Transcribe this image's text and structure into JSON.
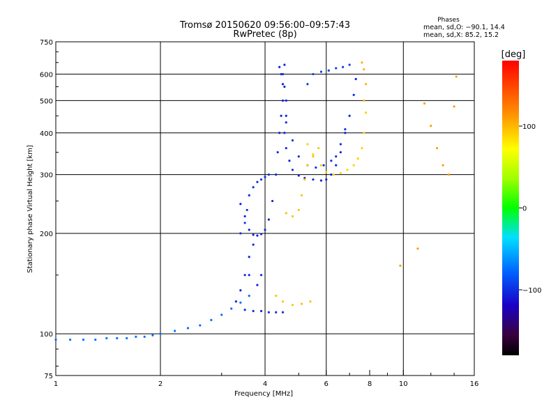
{
  "chart_data": {
    "type": "scatter",
    "title": "Tromsø 20150620 09:56:00–09:57:43",
    "subtitle": "RwPretec (8p)",
    "xlabel": "Frequency [MHz]",
    "ylabel": "Stationary phase Virtual Height [km]",
    "x_scale": "log",
    "y_scale": "log",
    "xlim": [
      1,
      16
    ],
    "ylim": [
      75,
      750
    ],
    "x_ticks": [
      1,
      2,
      4,
      6,
      8,
      10,
      16
    ],
    "x_tick_labels": [
      "1",
      "2",
      "4",
      "6",
      "8",
      "10",
      "16"
    ],
    "y_ticks": [
      75,
      100,
      200,
      300,
      400,
      500,
      600,
      750
    ],
    "y_tick_labels": [
      "75",
      "100",
      "200",
      "300",
      "400",
      "500",
      "600",
      "750"
    ],
    "grid": true,
    "phases_header": "Phases",
    "phases_o": "mean, sd,O: −90.1, 14.4",
    "phases_x": "mean, sd,X:  85.2, 15.2",
    "colorbar": {
      "label": "[deg]",
      "ticks": [
        100,
        0,
        -100
      ],
      "tick_labels": [
        "100",
        "0",
        "−100"
      ],
      "range": [
        -180,
        180
      ]
    },
    "series": [
      {
        "color_deg": -75,
        "points": [
          [
            1.0,
            96
          ],
          [
            1.1,
            96
          ],
          [
            1.2,
            96
          ],
          [
            1.3,
            96
          ],
          [
            1.4,
            97
          ],
          [
            1.5,
            97
          ],
          [
            1.6,
            97
          ],
          [
            1.7,
            98
          ],
          [
            1.8,
            98
          ],
          [
            1.9,
            99
          ],
          [
            2.0,
            100
          ],
          [
            2.2,
            102
          ],
          [
            2.4,
            104
          ],
          [
            2.6,
            106
          ],
          [
            2.8,
            110
          ],
          [
            3.0,
            114
          ],
          [
            3.2,
            119
          ],
          [
            3.4,
            124
          ],
          [
            3.6,
            130
          ]
        ]
      },
      {
        "color_deg": -100,
        "points": [
          [
            3.5,
            118
          ],
          [
            3.7,
            117
          ],
          [
            3.9,
            117
          ],
          [
            4.1,
            116
          ],
          [
            4.3,
            116
          ],
          [
            4.5,
            116
          ]
        ]
      },
      {
        "color_deg": -105,
        "points": [
          [
            3.3,
            125
          ],
          [
            3.4,
            135
          ],
          [
            3.5,
            150
          ],
          [
            3.6,
            170
          ],
          [
            3.7,
            185
          ],
          [
            3.6,
            150
          ],
          [
            3.8,
            140
          ],
          [
            3.9,
            150
          ]
        ]
      },
      {
        "color_deg": -100,
        "points": [
          [
            3.4,
            200
          ],
          [
            3.5,
            215
          ],
          [
            3.55,
            235
          ],
          [
            3.6,
            260
          ],
          [
            3.7,
            275
          ],
          [
            3.8,
            285
          ],
          [
            3.9,
            290
          ],
          [
            4.0,
            295
          ],
          [
            4.1,
            300
          ]
        ]
      },
      {
        "color_deg": -105,
        "points": [
          [
            3.4,
            245
          ],
          [
            3.5,
            225
          ],
          [
            3.6,
            205
          ],
          [
            3.7,
            198
          ],
          [
            3.8,
            197
          ],
          [
            3.9,
            199
          ],
          [
            4.0,
            205
          ],
          [
            4.1,
            220
          ],
          [
            4.2,
            250
          ],
          [
            4.3,
            300
          ],
          [
            4.35,
            350
          ],
          [
            4.4,
            400
          ],
          [
            4.45,
            450
          ],
          [
            4.5,
            500
          ],
          [
            4.5,
            560
          ],
          [
            4.45,
            600
          ],
          [
            4.4,
            630
          ]
        ]
      },
      {
        "color_deg": -105,
        "points": [
          [
            4.55,
            640
          ],
          [
            4.5,
            600
          ],
          [
            4.55,
            550
          ],
          [
            4.6,
            500
          ],
          [
            4.6,
            450
          ],
          [
            4.55,
            400
          ],
          [
            4.6,
            360
          ],
          [
            4.7,
            330
          ],
          [
            4.8,
            310
          ],
          [
            5.0,
            298
          ],
          [
            5.2,
            293
          ],
          [
            5.5,
            290
          ],
          [
            5.8,
            288
          ],
          [
            6.0,
            290
          ],
          [
            6.2,
            300
          ],
          [
            6.4,
            320
          ],
          [
            6.6,
            350
          ],
          [
            6.8,
            400
          ],
          [
            7.0,
            450
          ],
          [
            7.2,
            520
          ],
          [
            7.3,
            580
          ]
        ]
      },
      {
        "color_deg": -100,
        "points": [
          [
            4.6,
            430
          ],
          [
            4.8,
            380
          ],
          [
            5.0,
            340
          ],
          [
            5.3,
            320
          ],
          [
            5.6,
            315
          ],
          [
            5.9,
            320
          ],
          [
            6.2,
            330
          ],
          [
            6.4,
            340
          ],
          [
            6.6,
            370
          ],
          [
            6.8,
            410
          ]
        ]
      },
      {
        "color_deg": -95,
        "points": [
          [
            5.3,
            560
          ],
          [
            5.5,
            600
          ],
          [
            5.8,
            610
          ],
          [
            6.1,
            615
          ],
          [
            6.4,
            625
          ],
          [
            6.7,
            630
          ],
          [
            7.0,
            640
          ]
        ]
      },
      {
        "color_deg": 95,
        "points": [
          [
            4.6,
            230
          ],
          [
            4.8,
            225
          ],
          [
            5.0,
            235
          ],
          [
            5.1,
            260
          ],
          [
            5.2,
            290
          ],
          [
            5.3,
            320
          ],
          [
            5.5,
            340
          ],
          [
            5.7,
            360
          ]
        ]
      },
      {
        "color_deg": 90,
        "points": [
          [
            5.3,
            370
          ],
          [
            5.5,
            345
          ],
          [
            5.8,
            320
          ],
          [
            6.0,
            305
          ],
          [
            6.3,
            300
          ],
          [
            6.6,
            303
          ],
          [
            6.9,
            310
          ],
          [
            7.2,
            320
          ],
          [
            7.4,
            335
          ],
          [
            7.6,
            360
          ],
          [
            7.7,
            400
          ],
          [
            7.8,
            460
          ]
        ]
      },
      {
        "color_deg": 95,
        "points": [
          [
            4.3,
            130
          ],
          [
            4.5,
            125
          ],
          [
            4.8,
            122
          ],
          [
            5.1,
            123
          ],
          [
            5.4,
            125
          ]
        ]
      },
      {
        "color_deg": 100,
        "points": [
          [
            7.7,
            500
          ],
          [
            7.8,
            560
          ],
          [
            7.7,
            620
          ],
          [
            7.6,
            650
          ]
        ]
      },
      {
        "color_deg": 110,
        "points": [
          [
            11.5,
            490
          ],
          [
            12.0,
            420
          ],
          [
            12.5,
            360
          ],
          [
            13.0,
            320
          ],
          [
            13.5,
            300
          ],
          [
            14.0,
            480
          ],
          [
            14.2,
            590
          ],
          [
            11.0,
            180
          ],
          [
            9.8,
            160
          ]
        ]
      }
    ]
  }
}
